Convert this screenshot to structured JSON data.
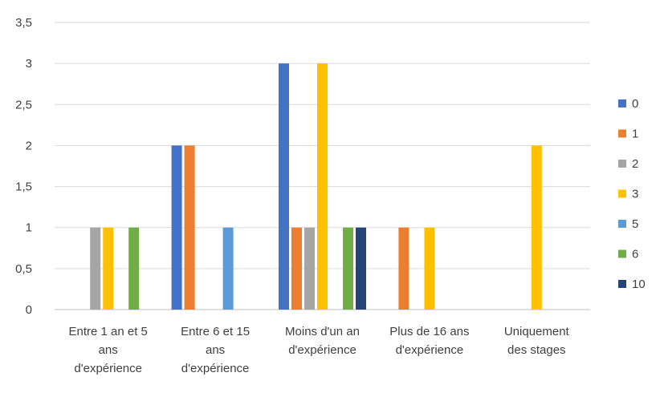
{
  "chart_data": {
    "type": "bar",
    "title": "",
    "xlabel": "",
    "ylabel": "",
    "ylim": [
      0,
      3.5
    ],
    "yticks": [
      "0",
      "0,5",
      "1",
      "1,5",
      "2",
      "2,5",
      "3",
      "3,5"
    ],
    "grid": true,
    "legend_position": "right",
    "categories": [
      [
        "Entre 1 an et 5",
        "ans",
        "d'expérience"
      ],
      [
        "Entre 6 et 15",
        "ans",
        "d'expérience"
      ],
      [
        "Moins d'un an",
        "d'expérience"
      ],
      [
        "Plus de 16 ans",
        "d'expérience"
      ],
      [
        "Uniquement",
        "des stages"
      ]
    ],
    "series": [
      {
        "name": "0",
        "color": "#4472C4",
        "values": [
          0,
          2,
          3,
          0,
          0
        ]
      },
      {
        "name": "1",
        "color": "#ED7D31",
        "values": [
          0,
          2,
          1,
          1,
          0
        ]
      },
      {
        "name": "2",
        "color": "#A5A5A5",
        "values": [
          1,
          0,
          1,
          0,
          0
        ]
      },
      {
        "name": "3",
        "color": "#FFC000",
        "values": [
          1,
          0,
          3,
          1,
          2
        ]
      },
      {
        "name": "5",
        "color": "#5B9BD5",
        "values": [
          0,
          1,
          0,
          0,
          0
        ]
      },
      {
        "name": "6",
        "color": "#70AD47",
        "values": [
          1,
          0,
          1,
          0,
          0
        ]
      },
      {
        "name": "10",
        "color": "#264478",
        "values": [
          0,
          0,
          1,
          0,
          0
        ]
      }
    ]
  }
}
